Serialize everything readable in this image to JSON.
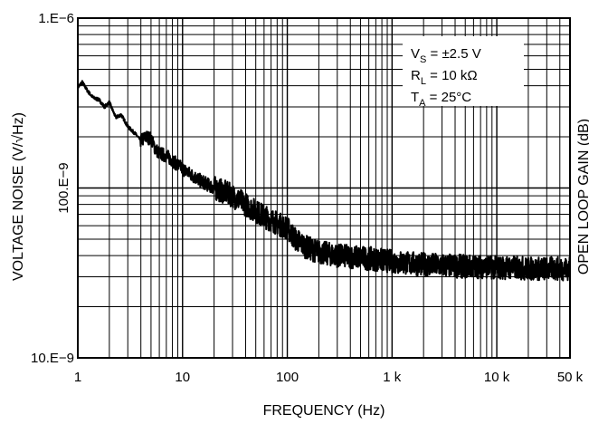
{
  "chart_data": {
    "type": "line",
    "title": "",
    "xlabel": "FREQUENCY (Hz)",
    "ylabel": "VOLTAGE NOISE (V/√Hz)",
    "ylabel_right": "OPEN LOOP GAIN (dB)",
    "x_scale": "log",
    "y_scale": "log",
    "xlim": [
      1,
      50000
    ],
    "ylim": [
      1e-08,
      1e-06
    ],
    "grid": true,
    "x_ticks": [
      {
        "value": 1,
        "label": "1"
      },
      {
        "value": 10,
        "label": "10"
      },
      {
        "value": 100,
        "label": "100"
      },
      {
        "value": 1000,
        "label": "1 k"
      },
      {
        "value": 10000,
        "label": "10 k"
      },
      {
        "value": 50000,
        "label": "50 k"
      }
    ],
    "y_ticks": [
      {
        "value": 1e-06,
        "label": "1.E−6"
      },
      {
        "value": 1e-07,
        "label": "100.E−9"
      },
      {
        "value": 1e-08,
        "label": "10.E−9"
      }
    ],
    "annotations": [
      {
        "main": "V",
        "sub": "S",
        "rest": " = ±2.5 V"
      },
      {
        "main": "R",
        "sub": "L",
        "rest": " = 10 kΩ"
      },
      {
        "main": "T",
        "sub": "A",
        "rest": " = 25°C"
      }
    ],
    "series": [
      {
        "x": [
          1,
          1.1,
          1.25,
          1.4,
          1.6,
          1.8,
          2.0,
          2.3,
          2.6,
          3.0,
          3.5,
          4.0,
          4.5,
          5.0,
          5.5,
          6,
          7,
          8,
          10,
          12,
          15,
          20,
          25,
          30,
          40,
          50,
          60,
          70,
          80,
          100,
          120,
          150,
          200,
          300,
          500,
          700,
          1000,
          1500,
          2000,
          3000,
          5000,
          7000,
          10000,
          15000,
          20000,
          30000,
          50000
        ],
        "y": [
          3.9e-07,
          4.2e-07,
          3.7e-07,
          3.4e-07,
          3.3e-07,
          3e-07,
          3.2e-07,
          2.6e-07,
          2.7e-07,
          2.3e-07,
          2.1e-07,
          1.9e-07,
          2e-07,
          1.95e-07,
          1.7e-07,
          1.6e-07,
          1.55e-07,
          1.45e-07,
          1.3e-07,
          1.2e-07,
          1.1e-07,
          1e-07,
          9.5e-08,
          9e-08,
          8e-08,
          7.3e-08,
          6.8e-08,
          6.5e-08,
          6.2e-08,
          5.8e-08,
          5e-08,
          4.5e-08,
          4.2e-08,
          4e-08,
          3.9e-08,
          3.8e-08,
          3.7e-08,
          3.6e-08,
          3.55e-08,
          3.5e-08,
          3.45e-08,
          3.45e-08,
          3.4e-08,
          3.4e-08,
          3.35e-08,
          3.35e-08,
          3.35e-08
        ]
      }
    ]
  }
}
